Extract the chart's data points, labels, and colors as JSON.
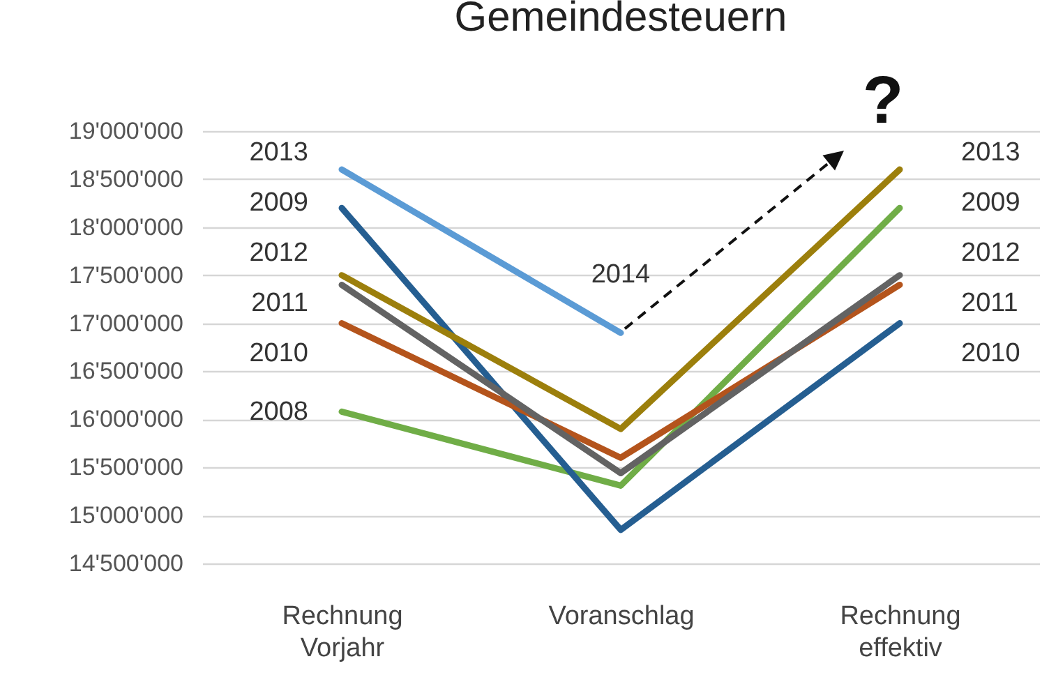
{
  "chart_data": {
    "type": "line",
    "title": "Gemeindesteuern",
    "categories": [
      "Rechnung Vorjahr",
      "Voranschlag",
      "Rechnung effektiv"
    ],
    "series": [
      {
        "color": "#70ad47",
        "values": [
          16080000,
          15310000,
          18200000
        ]
      },
      {
        "color": "#255e91",
        "values": [
          18200000,
          14850000,
          17000000
        ]
      },
      {
        "color": "#b4541c",
        "values": [
          17000000,
          15600000,
          17400000
        ]
      },
      {
        "color": "#636363",
        "values": [
          17400000,
          15440000,
          17500000
        ]
      },
      {
        "color": "#9c7f0c",
        "values": [
          17500000,
          15900000,
          18600000
        ]
      },
      {
        "color": "#5b9bd5",
        "values": [
          18600000,
          16900000,
          null
        ]
      }
    ],
    "ylim": [
      14500000,
      19000000
    ],
    "yticks": [
      {
        "value": 14500000,
        "label": "14'500'000"
      },
      {
        "value": 15000000,
        "label": "15'000'000"
      },
      {
        "value": 15500000,
        "label": "15'500'000"
      },
      {
        "value": 16000000,
        "label": "16'000'000"
      },
      {
        "value": 16500000,
        "label": "16'500'000"
      },
      {
        "value": 17000000,
        "label": "17'000'000"
      },
      {
        "value": 17500000,
        "label": "17'500'000"
      },
      {
        "value": 18000000,
        "label": "18'000'000"
      },
      {
        "value": 18500000,
        "label": "18'500'000"
      },
      {
        "value": 19000000,
        "label": "19'000'000"
      }
    ],
    "grid": "y",
    "annotations": [
      {
        "text": "2013",
        "x": "Rechnung Vorjahr",
        "y": 18600000
      },
      {
        "text": "2009",
        "x": "Rechnung Vorjahr",
        "y": 18200000
      },
      {
        "text": "2012",
        "x": "Rechnung Vorjahr",
        "y": 17500000
      },
      {
        "text": "2011",
        "x": "Rechnung Vorjahr",
        "y": 17400000
      },
      {
        "text": "2010",
        "x": "Rechnung Vorjahr",
        "y": 17000000
      },
      {
        "text": "2008",
        "x": "Rechnung Vorjahr",
        "y": 16080000
      },
      {
        "text": "2014",
        "x": "Voranschlag",
        "y": 16900000
      },
      {
        "text": "2013",
        "x": "Rechnung effektiv",
        "y": 18600000
      },
      {
        "text": "2009",
        "x": "Rechnung effektiv",
        "y": 18200000
      },
      {
        "text": "2012",
        "x": "Rechnung effektiv",
        "y": 17500000
      },
      {
        "text": "2011",
        "x": "Rechnung effektiv",
        "y": 17400000
      },
      {
        "text": "2010",
        "x": "Rechnung effektiv",
        "y": 17000000
      },
      {
        "text": "?",
        "x": "Voranschlag",
        "y": 16900000
      }
    ]
  }
}
